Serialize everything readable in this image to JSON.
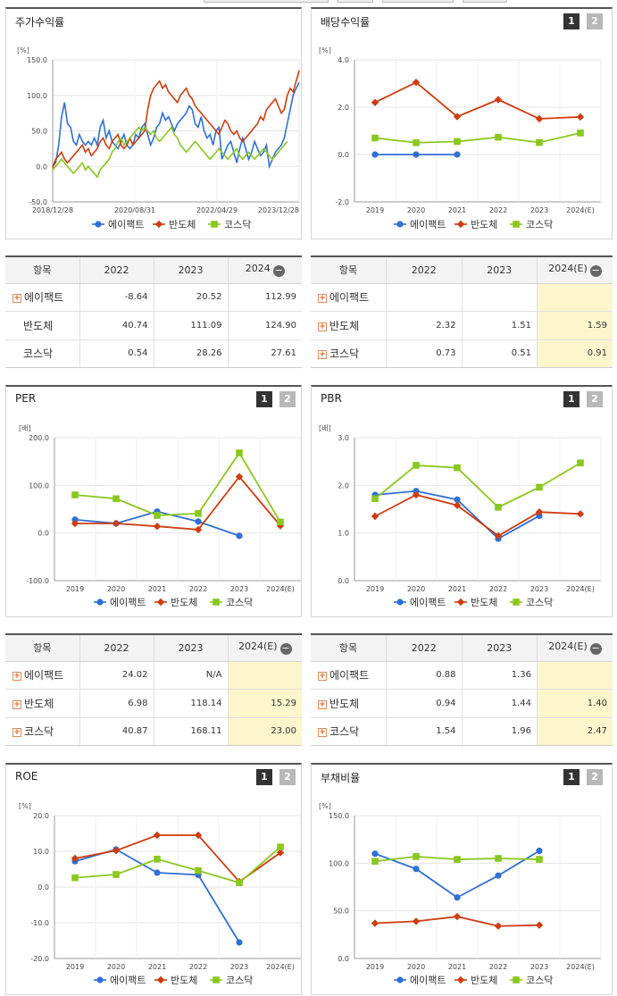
{
  "colors": {
    "s1": "#2f6fd6",
    "s2": "#cf3c0f",
    "s3": "#8ac71f"
  },
  "legend": [
    "에이팩트",
    "반도체",
    "코스닥"
  ],
  "button_labels": [
    "1",
    "2"
  ],
  "panels": {
    "stock": {
      "title": "주가수익률",
      "unit": "[%]"
    },
    "dividend": {
      "title": "배당수익률",
      "unit": "[%]"
    },
    "per": {
      "title": "PER",
      "unit": "[배]"
    },
    "pbr": {
      "title": "PBR",
      "unit": "[배]"
    },
    "roe": {
      "title": "ROE",
      "unit": "[%]"
    },
    "debt": {
      "title": "부채비율",
      "unit": "[%]"
    }
  },
  "tables": {
    "stock": {
      "headers": [
        "항목",
        "2022",
        "2023",
        "2024"
      ],
      "rows": [
        {
          "name": "에이팩트",
          "expand": true,
          "values": [
            "-8.64",
            "20.52",
            "112.99"
          ]
        },
        {
          "name": "반도체",
          "expand": false,
          "values": [
            "40.74",
            "111.09",
            "124.90"
          ]
        },
        {
          "name": "코스닥",
          "expand": false,
          "values": [
            "0.54",
            "28.26",
            "27.61"
          ]
        }
      ]
    },
    "dividend": {
      "headers": [
        "항목",
        "2022",
        "2023",
        "2024(E)"
      ],
      "rows": [
        {
          "name": "에이팩트",
          "expand": true,
          "values": [
            "",
            "",
            ""
          ]
        },
        {
          "name": "반도체",
          "expand": true,
          "values": [
            "2.32",
            "1.51",
            "1.59"
          ]
        },
        {
          "name": "코스닥",
          "expand": true,
          "values": [
            "0.73",
            "0.51",
            "0.91"
          ]
        }
      ]
    },
    "per": {
      "headers": [
        "항목",
        "2022",
        "2023",
        "2024(E)"
      ],
      "rows": [
        {
          "name": "에이팩트",
          "expand": true,
          "values": [
            "24.02",
            "N/A",
            ""
          ]
        },
        {
          "name": "반도체",
          "expand": true,
          "values": [
            "6.98",
            "118.14",
            "15.29"
          ]
        },
        {
          "name": "코스닥",
          "expand": true,
          "values": [
            "40.87",
            "168.11",
            "23.00"
          ]
        }
      ]
    },
    "pbr": {
      "headers": [
        "항목",
        "2022",
        "2023",
        "2024(E)"
      ],
      "rows": [
        {
          "name": "에이팩트",
          "expand": true,
          "values": [
            "0.88",
            "1.36",
            ""
          ]
        },
        {
          "name": "반도체",
          "expand": true,
          "values": [
            "0.94",
            "1.44",
            "1.40"
          ]
        },
        {
          "name": "코스닥",
          "expand": true,
          "values": [
            "1.54",
            "1.96",
            "2.47"
          ]
        }
      ]
    }
  },
  "chart_data": [
    {
      "id": "stock",
      "type": "line",
      "title": "주가수익률",
      "ylabel": "[%]",
      "ylim": [
        -50,
        150
      ],
      "yticks": [
        "150.0",
        "100.0",
        "50.0",
        "0.0",
        "-50.0"
      ],
      "xticks": [
        "2018/12/28",
        "2020/08/31",
        "2022/04/29",
        "2023/12/28"
      ],
      "series": [
        {
          "name": "에이팩트",
          "values": [
            0,
            5,
            30,
            70,
            90,
            60,
            55,
            35,
            30,
            45,
            35,
            30,
            35,
            30,
            40,
            30,
            55,
            65,
            40,
            50,
            35,
            30,
            25,
            35,
            45,
            30,
            25,
            30,
            45,
            40,
            55,
            60,
            45,
            30,
            40,
            55,
            60,
            75,
            65,
            70,
            60,
            50,
            60,
            65,
            70,
            75,
            85,
            80,
            60,
            55,
            70,
            50,
            40,
            45,
            30,
            50,
            55,
            10,
            20,
            30,
            35,
            20,
            5,
            25,
            40,
            25,
            10,
            20,
            35,
            25,
            15,
            20,
            30,
            0,
            10,
            20,
            25,
            30,
            40,
            60,
            80,
            100,
            110,
            118
          ]
        },
        {
          "name": "반도체",
          "values": [
            -2,
            10,
            15,
            20,
            10,
            5,
            10,
            15,
            20,
            25,
            30,
            20,
            25,
            15,
            20,
            25,
            35,
            40,
            30,
            25,
            35,
            40,
            45,
            30,
            25,
            30,
            40,
            30,
            35,
            40,
            45,
            50,
            80,
            100,
            110,
            115,
            120,
            110,
            115,
            105,
            100,
            95,
            90,
            100,
            105,
            110,
            100,
            95,
            85,
            80,
            75,
            70,
            65,
            60,
            55,
            50,
            45,
            55,
            65,
            60,
            50,
            45,
            50,
            40,
            35,
            40,
            45,
            50,
            55,
            60,
            70,
            65,
            80,
            85,
            90,
            95,
            85,
            75,
            80,
            100,
            110,
            105,
            120,
            135
          ]
        },
        {
          "name": "코스닥",
          "values": [
            -5,
            0,
            5,
            10,
            5,
            0,
            -5,
            -10,
            -5,
            0,
            5,
            -5,
            0,
            -5,
            -10,
            -15,
            -5,
            0,
            5,
            10,
            20,
            25,
            35,
            40,
            30,
            35,
            40,
            45,
            50,
            55,
            50,
            55,
            50,
            45,
            50,
            40,
            35,
            40,
            45,
            50,
            55,
            45,
            40,
            30,
            25,
            20,
            25,
            30,
            35,
            30,
            25,
            20,
            15,
            10,
            15,
            20,
            25,
            20,
            15,
            10,
            15,
            20,
            25,
            15,
            10,
            15,
            20,
            15,
            10,
            15,
            20,
            25,
            20,
            15,
            10,
            15,
            20,
            25,
            30,
            35
          ]
        }
      ]
    },
    {
      "id": "dividend",
      "type": "line",
      "title": "배당수익률",
      "ylabel": "[%]",
      "ylim": [
        -2,
        4
      ],
      "yticks": [
        "4.0",
        "2.0",
        "0.0",
        "-2.0"
      ],
      "categories": [
        "2019",
        "2020",
        "2021",
        "2022",
        "2023",
        "2024(E)"
      ],
      "series": [
        {
          "name": "에이팩트",
          "values": [
            0,
            0,
            0,
            null,
            null,
            null
          ]
        },
        {
          "name": "반도체",
          "values": [
            2.2,
            3.05,
            1.6,
            2.32,
            1.51,
            1.59
          ]
        },
        {
          "name": "코스닥",
          "values": [
            0.7,
            0.5,
            0.55,
            0.73,
            0.51,
            0.91
          ]
        }
      ]
    },
    {
      "id": "per",
      "type": "line",
      "title": "PER",
      "ylabel": "[배]",
      "ylim": [
        -100,
        200
      ],
      "yticks": [
        "200.0",
        "100.0",
        "0.0",
        "-100.0"
      ],
      "categories": [
        "2019",
        "2020",
        "2021",
        "2022",
        "2023",
        "2024(E)"
      ],
      "series": [
        {
          "name": "에이팩트",
          "values": [
            28,
            20,
            45,
            24.02,
            -6,
            null
          ]
        },
        {
          "name": "반도체",
          "values": [
            20,
            20,
            14,
            6.98,
            118.14,
            15.29
          ]
        },
        {
          "name": "코스닥",
          "values": [
            80,
            72,
            37,
            40.87,
            168.11,
            23.0
          ]
        }
      ]
    },
    {
      "id": "pbr",
      "type": "line",
      "title": "PBR",
      "ylabel": "[배]",
      "ylim": [
        0,
        3
      ],
      "yticks": [
        "3.0",
        "2.0",
        "1.0",
        "0.0"
      ],
      "categories": [
        "2019",
        "2020",
        "2021",
        "2022",
        "2023",
        "2024(E)"
      ],
      "series": [
        {
          "name": "에이팩트",
          "values": [
            1.8,
            1.88,
            1.7,
            0.88,
            1.36,
            null
          ]
        },
        {
          "name": "반도체",
          "values": [
            1.35,
            1.8,
            1.58,
            0.94,
            1.44,
            1.4
          ]
        },
        {
          "name": "코스닥",
          "values": [
            1.72,
            2.42,
            2.37,
            1.54,
            1.96,
            2.47
          ]
        }
      ]
    },
    {
      "id": "roe",
      "type": "line",
      "title": "ROE",
      "ylabel": "[%]",
      "ylim": [
        -20,
        20
      ],
      "yticks": [
        "20.0",
        "10.0",
        "0.0",
        "-10.0",
        "-20.0"
      ],
      "categories": [
        "2019",
        "2020",
        "2021",
        "2022",
        "2023",
        "2024(E)"
      ],
      "series": [
        {
          "name": "에이팩트",
          "values": [
            7.2,
            10.5,
            4.0,
            3.4,
            -15.5,
            null
          ]
        },
        {
          "name": "반도체",
          "values": [
            8.0,
            10.2,
            14.5,
            14.5,
            1.5,
            9.6
          ]
        },
        {
          "name": "코스닥",
          "values": [
            2.6,
            3.5,
            7.8,
            4.6,
            1.2,
            11.2
          ]
        }
      ]
    },
    {
      "id": "debt",
      "type": "line",
      "title": "부채비율",
      "ylabel": "[%]",
      "ylim": [
        0,
        150
      ],
      "yticks": [
        "150.0",
        "100.0",
        "50.0",
        "0.0"
      ],
      "categories": [
        "2019",
        "2020",
        "2021",
        "2022",
        "2023",
        "2024(E)"
      ],
      "series": [
        {
          "name": "에이팩트",
          "values": [
            110,
            94,
            64,
            87,
            113,
            null
          ]
        },
        {
          "name": "반도체",
          "values": [
            37,
            39,
            44,
            34,
            35,
            null
          ]
        },
        {
          "name": "코스닥",
          "values": [
            102,
            107,
            104,
            105,
            104,
            null
          ]
        }
      ]
    }
  ]
}
